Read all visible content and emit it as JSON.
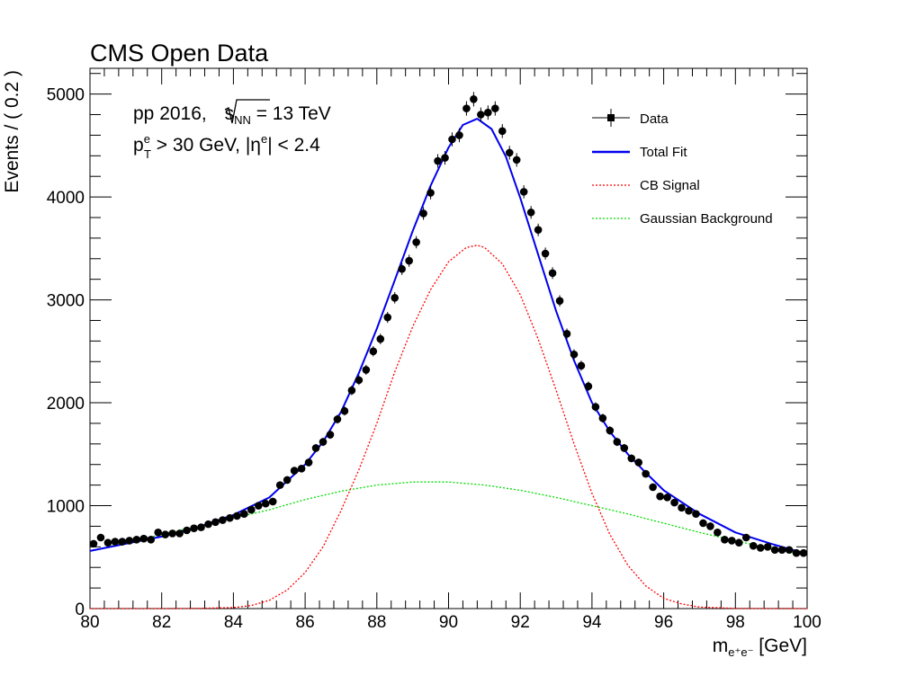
{
  "chart_data": {
    "type": "scatter",
    "title": "CMS Open Data",
    "annotations": {
      "line1_prefix": "pp 2016, ",
      "line1_sqrt_s": "s",
      "line1_sqrt_sub": "NN",
      "line1_suffix": " = 13 TeV",
      "line2_p": "p",
      "line2_p_sup": "e",
      "line2_p_sub": "T",
      "line2_mid": " > 30 GeV, |η",
      "line2_eta_sup": "e",
      "line2_end": "| < 2.4"
    },
    "xlabel_main": "m",
    "xlabel_sub": "e⁺e⁻",
    "xlabel_unit": " [GeV]",
    "ylabel": "Events / ( 0.2 )",
    "xlim": [
      80,
      100
    ],
    "ylim": [
      0,
      5250
    ],
    "xticks": [
      "80",
      "82",
      "84",
      "86",
      "88",
      "90",
      "92",
      "94",
      "96",
      "98",
      "100"
    ],
    "yticks": [
      "0",
      "1000",
      "2000",
      "3000",
      "4000",
      "5000"
    ],
    "legend": {
      "position": "top-right",
      "entries": [
        {
          "label": "Data",
          "style": "marker",
          "color": "#000000"
        },
        {
          "label": "Total Fit",
          "style": "solid",
          "color": "#0000ee"
        },
        {
          "label": "CB Signal",
          "style": "dotted",
          "color": "#ff0000"
        },
        {
          "label": "Gaussian Background",
          "style": "dotted",
          "color": "#00dd00"
        }
      ]
    },
    "series": [
      {
        "name": "Data",
        "style": "points",
        "color": "#000000",
        "points": [
          [
            80.1,
            630
          ],
          [
            80.3,
            690
          ],
          [
            80.5,
            640
          ],
          [
            80.7,
            650
          ],
          [
            80.9,
            650
          ],
          [
            81.1,
            660
          ],
          [
            81.3,
            670
          ],
          [
            81.5,
            680
          ],
          [
            81.7,
            670
          ],
          [
            81.9,
            740
          ],
          [
            82.1,
            720
          ],
          [
            82.3,
            730
          ],
          [
            82.5,
            730
          ],
          [
            82.7,
            760
          ],
          [
            82.9,
            780
          ],
          [
            83.1,
            790
          ],
          [
            83.3,
            820
          ],
          [
            83.5,
            840
          ],
          [
            83.7,
            860
          ],
          [
            83.9,
            880
          ],
          [
            84.1,
            900
          ],
          [
            84.3,
            920
          ],
          [
            84.5,
            960
          ],
          [
            84.7,
            1000
          ],
          [
            84.9,
            1020
          ],
          [
            85.1,
            1040
          ],
          [
            85.3,
            1200
          ],
          [
            85.5,
            1250
          ],
          [
            85.7,
            1340
          ],
          [
            85.9,
            1360
          ],
          [
            86.1,
            1420
          ],
          [
            86.3,
            1560
          ],
          [
            86.5,
            1620
          ],
          [
            86.7,
            1690
          ],
          [
            86.9,
            1840
          ],
          [
            87.1,
            1920
          ],
          [
            87.3,
            2120
          ],
          [
            87.5,
            2220
          ],
          [
            87.7,
            2320
          ],
          [
            87.9,
            2500
          ],
          [
            88.1,
            2620
          ],
          [
            88.3,
            2830
          ],
          [
            88.5,
            3020
          ],
          [
            88.7,
            3300
          ],
          [
            88.9,
            3380
          ],
          [
            89.1,
            3560
          ],
          [
            89.3,
            3840
          ],
          [
            89.5,
            4040
          ],
          [
            89.7,
            4350
          ],
          [
            89.9,
            4380
          ],
          [
            90.1,
            4560
          ],
          [
            90.3,
            4600
          ],
          [
            90.5,
            4860
          ],
          [
            90.7,
            4950
          ],
          [
            90.9,
            4800
          ],
          [
            91.1,
            4820
          ],
          [
            91.3,
            4860
          ],
          [
            91.5,
            4640
          ],
          [
            91.7,
            4430
          ],
          [
            91.9,
            4360
          ],
          [
            92.1,
            4050
          ],
          [
            92.3,
            3850
          ],
          [
            92.5,
            3680
          ],
          [
            92.7,
            3450
          ],
          [
            92.9,
            3260
          ],
          [
            93.1,
            2990
          ],
          [
            93.3,
            2670
          ],
          [
            93.5,
            2470
          ],
          [
            93.7,
            2360
          ],
          [
            93.9,
            2160
          ],
          [
            94.1,
            1960
          ],
          [
            94.3,
            1850
          ],
          [
            94.5,
            1730
          ],
          [
            94.7,
            1620
          ],
          [
            94.9,
            1560
          ],
          [
            95.1,
            1460
          ],
          [
            95.3,
            1420
          ],
          [
            95.5,
            1310
          ],
          [
            95.7,
            1180
          ],
          [
            95.9,
            1090
          ],
          [
            96.1,
            1080
          ],
          [
            96.3,
            1030
          ],
          [
            96.5,
            980
          ],
          [
            96.7,
            950
          ],
          [
            96.9,
            920
          ],
          [
            97.1,
            830
          ],
          [
            97.3,
            800
          ],
          [
            97.5,
            740
          ],
          [
            97.7,
            670
          ],
          [
            97.9,
            660
          ],
          [
            98.1,
            640
          ],
          [
            98.3,
            690
          ],
          [
            98.5,
            610
          ],
          [
            98.7,
            590
          ],
          [
            98.9,
            600
          ],
          [
            99.1,
            570
          ],
          [
            99.3,
            570
          ],
          [
            99.5,
            570
          ],
          [
            99.7,
            540
          ],
          [
            99.9,
            540
          ]
        ]
      },
      {
        "name": "Total Fit",
        "style": "line",
        "color": "#0000ee",
        "points": [
          [
            80,
            560
          ],
          [
            81,
            630
          ],
          [
            82,
            700
          ],
          [
            83,
            790
          ],
          [
            84,
            910
          ],
          [
            85,
            1080
          ],
          [
            86,
            1400
          ],
          [
            86.5,
            1620
          ],
          [
            87,
            1910
          ],
          [
            87.5,
            2290
          ],
          [
            88,
            2720
          ],
          [
            88.5,
            3190
          ],
          [
            89,
            3670
          ],
          [
            89.5,
            4110
          ],
          [
            90,
            4480
          ],
          [
            90.4,
            4700
          ],
          [
            90.8,
            4760
          ],
          [
            91.2,
            4660
          ],
          [
            91.6,
            4390
          ],
          [
            92,
            3990
          ],
          [
            92.5,
            3440
          ],
          [
            93,
            2890
          ],
          [
            93.5,
            2410
          ],
          [
            94,
            2000
          ],
          [
            94.5,
            1720
          ],
          [
            95,
            1500
          ],
          [
            95.5,
            1320
          ],
          [
            96,
            1150
          ],
          [
            97,
            920
          ],
          [
            98,
            740
          ],
          [
            99,
            630
          ],
          [
            100,
            530
          ]
        ]
      },
      {
        "name": "CB Signal",
        "style": "dotted",
        "color": "#ff0000",
        "points": [
          [
            80,
            0
          ],
          [
            82,
            0
          ],
          [
            83,
            2
          ],
          [
            84,
            10
          ],
          [
            84.5,
            30
          ],
          [
            85,
            80
          ],
          [
            85.5,
            180
          ],
          [
            86,
            350
          ],
          [
            86.5,
            600
          ],
          [
            87,
            950
          ],
          [
            87.5,
            1350
          ],
          [
            88,
            1800
          ],
          [
            88.5,
            2300
          ],
          [
            89,
            2740
          ],
          [
            89.5,
            3100
          ],
          [
            90,
            3370
          ],
          [
            90.5,
            3510
          ],
          [
            90.8,
            3530
          ],
          [
            91,
            3510
          ],
          [
            91.5,
            3350
          ],
          [
            92,
            3050
          ],
          [
            92.5,
            2620
          ],
          [
            93,
            2120
          ],
          [
            93.5,
            1600
          ],
          [
            94,
            1120
          ],
          [
            94.5,
            720
          ],
          [
            95,
            420
          ],
          [
            95.5,
            220
          ],
          [
            96,
            100
          ],
          [
            96.5,
            45
          ],
          [
            97,
            15
          ],
          [
            98,
            2
          ],
          [
            100,
            0
          ]
        ]
      },
      {
        "name": "Gaussian Background",
        "style": "dotted",
        "color": "#00dd00",
        "points": [
          [
            80,
            560
          ],
          [
            81,
            640
          ],
          [
            82,
            720
          ],
          [
            83,
            800
          ],
          [
            84,
            880
          ],
          [
            85,
            960
          ],
          [
            86,
            1060
          ],
          [
            87,
            1140
          ],
          [
            88,
            1200
          ],
          [
            89,
            1230
          ],
          [
            90,
            1230
          ],
          [
            91,
            1200
          ],
          [
            92,
            1150
          ],
          [
            93,
            1080
          ],
          [
            94,
            1000
          ],
          [
            95,
            920
          ],
          [
            96,
            830
          ],
          [
            97,
            740
          ],
          [
            98,
            660
          ],
          [
            99,
            580
          ],
          [
            100,
            520
          ]
        ]
      }
    ]
  }
}
